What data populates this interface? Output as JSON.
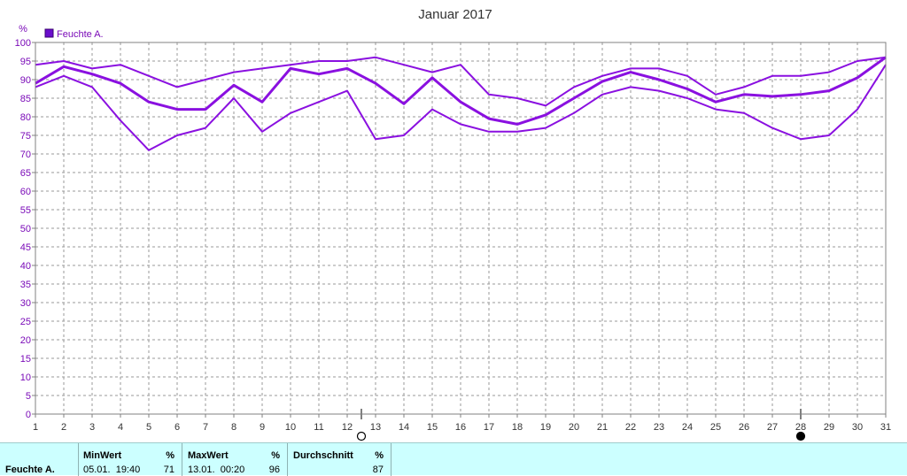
{
  "chart_data": {
    "type": "line",
    "title": "Januar 2017",
    "ylabel": "%",
    "ylim": [
      0,
      100
    ],
    "yticks": [
      0,
      5,
      10,
      15,
      20,
      25,
      30,
      35,
      40,
      45,
      50,
      55,
      60,
      65,
      70,
      75,
      80,
      85,
      90,
      95,
      100
    ],
    "x": [
      1,
      2,
      3,
      4,
      5,
      6,
      7,
      8,
      9,
      10,
      11,
      12,
      13,
      14,
      15,
      16,
      17,
      18,
      19,
      20,
      21,
      22,
      23,
      24,
      25,
      26,
      27,
      28,
      29,
      30,
      31
    ],
    "xlim": [
      1,
      31
    ],
    "grid": true,
    "legend": "top-left",
    "legend_label": "Feuchte A.",
    "series_color": "#8a10e0",
    "series": [
      {
        "values": [
          94,
          95,
          93,
          94,
          91,
          88,
          90,
          92,
          93,
          94,
          95,
          95,
          96,
          94,
          92,
          94,
          86,
          85,
          83,
          88,
          91,
          93,
          93,
          91,
          86,
          88,
          91,
          91,
          92,
          95,
          96
        ]
      },
      {
        "values": [
          89,
          93.5,
          91.5,
          89,
          84,
          82,
          82,
          88.5,
          84,
          93,
          91.5,
          93,
          89,
          83.5,
          90.5,
          84,
          79.5,
          78,
          80.5,
          85,
          89.5,
          92,
          90,
          87.5,
          84,
          86,
          85.5,
          86,
          87,
          90.5,
          96
        ]
      },
      {
        "values": [
          88,
          91,
          88,
          79,
          71,
          75,
          77,
          85,
          76,
          81,
          84,
          87,
          74,
          75,
          82,
          78,
          76,
          76,
          77,
          81,
          86,
          88,
          87,
          85,
          82,
          81,
          77,
          74,
          75,
          82,
          94
        ]
      }
    ],
    "markers": [
      {
        "x": 12.5,
        "icon": "moon-full-icon"
      },
      {
        "x": 28,
        "icon": "moon-new-icon"
      }
    ]
  },
  "summary": {
    "row_label": "Feuchte A.",
    "min": {
      "header": "MinWert",
      "unit": "%",
      "time": "05.01.  19:40",
      "value": "71"
    },
    "max": {
      "header": "MaxWert",
      "unit": "%",
      "time": "13.01.  00:20",
      "value": "96"
    },
    "avg": {
      "header": "Durchschnitt",
      "unit": "%",
      "value": "87"
    }
  }
}
